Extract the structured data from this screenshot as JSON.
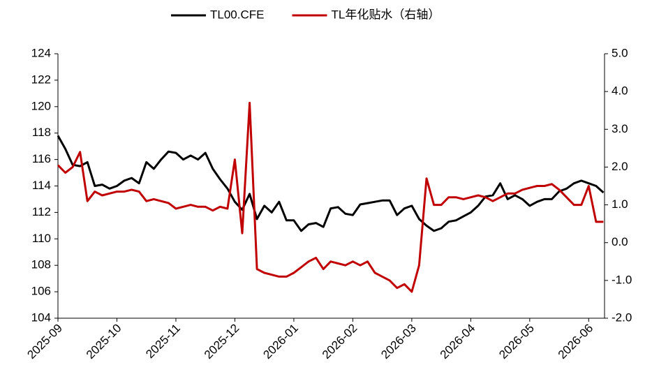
{
  "chart_data": {
    "type": "line",
    "categories": [
      "2025-09",
      null,
      null,
      null,
      null,
      null,
      null,
      null,
      "2025-10",
      null,
      null,
      null,
      null,
      null,
      null,
      null,
      "2025-11",
      null,
      null,
      null,
      null,
      null,
      null,
      null,
      "2025-12",
      null,
      null,
      null,
      null,
      null,
      null,
      null,
      "2026-01",
      null,
      null,
      null,
      null,
      null,
      null,
      null,
      "2026-02",
      null,
      null,
      null,
      null,
      null,
      null,
      null,
      "2026-03",
      null,
      null,
      null,
      null,
      null,
      null,
      null,
      "2026-04",
      null,
      null,
      null,
      null,
      null,
      null,
      null,
      "2026-05",
      null,
      null,
      null,
      null,
      null,
      null,
      null,
      "2026-06",
      null,
      null
    ],
    "series": [
      {
        "name": "TL00.CFE",
        "color": "#000000",
        "values": [
          117.8,
          116.8,
          115.6,
          115.5,
          115.8,
          114.0,
          114.1,
          113.8,
          114.0,
          114.4,
          114.6,
          114.2,
          115.8,
          115.3,
          116.0,
          116.6,
          116.5,
          116.0,
          116.3,
          116.0,
          116.5,
          115.3,
          114.5,
          113.8,
          112.8,
          112.2,
          113.4,
          111.5,
          112.5,
          112.0,
          112.8,
          111.4,
          111.4,
          110.6,
          111.1,
          111.2,
          110.9,
          112.3,
          112.4,
          111.9,
          111.8,
          112.6,
          112.7,
          112.8,
          112.9,
          112.9,
          111.8,
          112.3,
          112.5,
          111.5,
          111.0,
          110.6,
          110.8,
          111.3,
          111.4,
          111.7,
          112.0,
          112.5,
          113.2,
          113.3,
          114.2,
          113.0,
          113.3,
          113.0,
          112.5,
          112.8,
          113.0,
          113.0,
          113.6,
          113.8,
          114.2,
          114.4,
          114.2,
          114.0,
          113.5
        ]
      },
      {
        "name": "TL年化贴水（右轴）",
        "color": "#c00000",
        "axis": "y2",
        "values": [
          2.05,
          1.85,
          2.0,
          2.4,
          1.1,
          1.35,
          1.25,
          1.3,
          1.35,
          1.35,
          1.4,
          1.35,
          1.1,
          1.15,
          1.1,
          1.05,
          0.9,
          0.95,
          1.0,
          0.95,
          0.95,
          0.85,
          0.95,
          0.9,
          2.2,
          0.25,
          3.7,
          -0.7,
          -0.8,
          -0.85,
          -0.9,
          -0.9,
          -0.8,
          -0.65,
          -0.5,
          -0.4,
          -0.7,
          -0.5,
          -0.55,
          -0.6,
          -0.5,
          -0.6,
          -0.5,
          -0.8,
          -0.9,
          -1.0,
          -1.2,
          -1.1,
          -1.3,
          -0.6,
          1.7,
          1.0,
          1.0,
          1.2,
          1.2,
          1.15,
          1.2,
          1.25,
          1.2,
          1.1,
          1.2,
          1.3,
          1.3,
          1.4,
          1.45,
          1.5,
          1.5,
          1.55,
          1.4,
          1.2,
          1.0,
          1.0,
          1.5,
          0.55,
          0.55
        ]
      }
    ],
    "ylim": [
      104,
      124
    ],
    "yticks": [
      104,
      106,
      108,
      110,
      112,
      114,
      116,
      118,
      120,
      122,
      124
    ],
    "y2lim": [
      -2,
      5
    ],
    "y2ticks": [
      {
        "value": -2,
        "label": "-2.0"
      },
      {
        "value": -1,
        "label": "-1.0"
      },
      {
        "value": 0,
        "label": "0.0"
      },
      {
        "value": 1,
        "label": "1.0"
      },
      {
        "value": 2,
        "label": "2.0"
      },
      {
        "value": 3,
        "label": "3.0"
      },
      {
        "value": 4,
        "label": "4.0"
      },
      {
        "value": 5,
        "label": "5.0"
      }
    ],
    "legend": "top"
  }
}
